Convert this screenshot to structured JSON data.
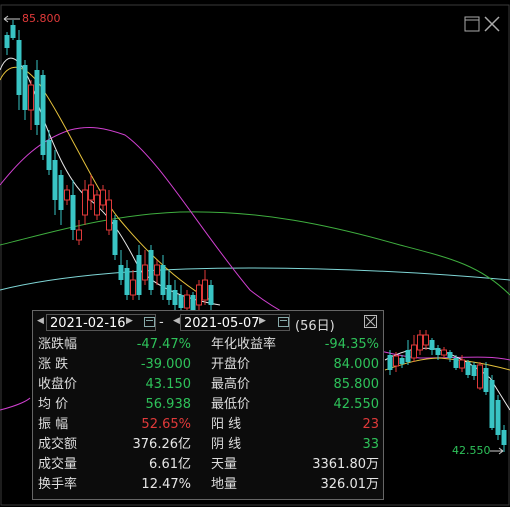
{
  "markers": {
    "high": "85.800",
    "low": "42.550"
  },
  "date_range": {
    "start": "2021-02-16",
    "separator": "-",
    "end": "2021-05-07",
    "days": "(56日)"
  },
  "stats": [
    {
      "left_label": "涨跌幅",
      "left_value": "-47.47%",
      "left_color": "#2ec25a",
      "right_label": "年化收益率",
      "right_value": "-94.35%",
      "right_color": "#2ec25a"
    },
    {
      "left_label": "涨 跌",
      "left_value": "-39.000",
      "left_color": "#2ec25a",
      "right_label": "开盘价",
      "right_value": "84.000",
      "right_color": "#2ec25a"
    },
    {
      "left_label": "收盘价",
      "left_value": "43.150",
      "left_color": "#2ec25a",
      "right_label": "最高价",
      "right_value": "85.800",
      "right_color": "#2ec25a"
    },
    {
      "left_label": "均 价",
      "left_value": "56.938",
      "left_color": "#2ec25a",
      "right_label": "最低价",
      "right_value": "42.550",
      "right_color": "#2ec25a"
    },
    {
      "left_label": "振 幅",
      "left_value": "52.65%",
      "left_color": "#e03a3a",
      "right_label": "阳 线",
      "right_value": "23",
      "right_color": "#e03a3a"
    },
    {
      "left_label": "成交额",
      "left_value": "376.26亿",
      "left_color": "#e6e6e6",
      "right_label": "阴 线",
      "right_value": "33",
      "right_color": "#2ec25a"
    },
    {
      "left_label": "成交量",
      "left_value": "6.61亿",
      "left_color": "#e6e6e6",
      "right_label": "天量",
      "right_value": "3361.80万",
      "right_color": "#e6e6e6"
    },
    {
      "left_label": "换手率",
      "left_value": "12.47%",
      "left_color": "#e6e6e6",
      "right_label": "地量",
      "right_value": "326.01万",
      "right_color": "#e6e6e6"
    }
  ],
  "colors": {
    "up": "#e03a3a",
    "down": "#2ec25a",
    "candle_down": "#39c4c4",
    "ma5": "#e8e8e8",
    "ma10": "#e6c23c",
    "ma20": "#d040d0",
    "ma60": "#3fae3f",
    "ma120": "#7fd6d6"
  },
  "icons": [
    "maximize-icon",
    "close-icon",
    "calendar-icon",
    "arrow-left-icon",
    "arrow-right-icon"
  ]
}
